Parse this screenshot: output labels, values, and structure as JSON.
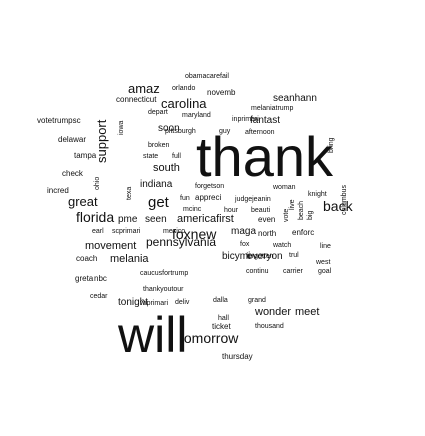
{
  "chart_data": {
    "type": "wordcloud",
    "title": "",
    "color": "#111111",
    "background": "#ffffff",
    "words": [
      {
        "text": "thank",
        "weight": 100,
        "vertical": false
      },
      {
        "text": "will",
        "weight": 92,
        "vertical": false
      },
      {
        "text": "tomorrow",
        "weight": 40,
        "vertical": false
      },
      {
        "text": "back",
        "weight": 34,
        "vertical": false
      },
      {
        "text": "florida",
        "weight": 34,
        "vertical": false
      },
      {
        "text": "get",
        "weight": 34,
        "vertical": false
      },
      {
        "text": "foxnew",
        "weight": 32,
        "vertical": false
      },
      {
        "text": "carolina",
        "weight": 32,
        "vertical": false
      },
      {
        "text": "support",
        "weight": 32,
        "vertical": true
      },
      {
        "text": "great",
        "weight": 30,
        "vertical": false
      },
      {
        "text": "amaz",
        "weight": 30,
        "vertical": false
      },
      {
        "text": "pennsylvania",
        "weight": 30,
        "vertical": false
      },
      {
        "text": "movement",
        "weight": 26,
        "vertical": false
      },
      {
        "text": "melania",
        "weight": 26,
        "vertical": false
      },
      {
        "text": "south",
        "weight": 26,
        "vertical": false
      },
      {
        "text": "wonder",
        "weight": 26,
        "vertical": false
      },
      {
        "text": "meet",
        "weight": 26,
        "vertical": false
      },
      {
        "text": "americafirst",
        "weight": 24,
        "vertical": false
      },
      {
        "text": "tonight",
        "weight": 24,
        "vertical": false
      },
      {
        "text": "seanhann",
        "weight": 24,
        "vertical": false
      },
      {
        "text": "fantast",
        "weight": 24,
        "vertical": false
      },
      {
        "text": "everyon",
        "weight": 24,
        "vertical": false
      },
      {
        "text": "soon",
        "weight": 24,
        "vertical": false
      },
      {
        "text": "indiana",
        "weight": 24,
        "vertical": false
      },
      {
        "text": "maga",
        "weight": 24,
        "vertical": false
      },
      {
        "text": "bicymi",
        "weight": 24,
        "vertical": false
      },
      {
        "text": "pme",
        "weight": 22,
        "vertical": false
      },
      {
        "text": "seen",
        "weight": 22,
        "vertical": false
      },
      {
        "text": "coach",
        "weight": 20,
        "vertical": false
      },
      {
        "text": "greta",
        "weight": 20,
        "vertical": false
      },
      {
        "text": "nbc",
        "weight": 20,
        "vertical": false
      },
      {
        "text": "check",
        "weight": 20,
        "vertical": false
      },
      {
        "text": "incred",
        "weight": 20,
        "vertical": false
      },
      {
        "text": "tampa",
        "weight": 20,
        "vertical": false
      },
      {
        "text": "delawar",
        "weight": 20,
        "vertical": false
      },
      {
        "text": "votetrumpsc",
        "weight": 18,
        "vertical": false
      },
      {
        "text": "connecticut",
        "weight": 18,
        "vertical": false
      },
      {
        "text": "orlando",
        "weight": 18,
        "vertical": false
      },
      {
        "text": "novemb",
        "weight": 20,
        "vertical": false
      },
      {
        "text": "obamacarefail",
        "weight": 16,
        "vertical": false
      },
      {
        "text": "depart",
        "weight": 18,
        "vertical": false
      },
      {
        "text": "maryland",
        "weight": 18,
        "vertical": false
      },
      {
        "text": "melaniatrump",
        "weight": 16,
        "vertical": false
      },
      {
        "text": "inprimari",
        "weight": 16,
        "vertical": false
      },
      {
        "text": "pittsburgh",
        "weight": 18,
        "vertical": false
      },
      {
        "text": "guy",
        "weight": 18,
        "vertical": false
      },
      {
        "text": "afternoon",
        "weight": 18,
        "vertical": false
      },
      {
        "text": "broken",
        "weight": 18,
        "vertical": false
      },
      {
        "text": "state",
        "weight": 18,
        "vertical": false
      },
      {
        "text": "full",
        "weight": 18,
        "vertical": false
      },
      {
        "text": "woman",
        "weight": 18,
        "vertical": false
      },
      {
        "text": "knight",
        "weight": 18,
        "vertical": false
      },
      {
        "text": "bring",
        "weight": 18,
        "vertical": true
      },
      {
        "text": "forgetson",
        "weight": 16,
        "vertical": false
      },
      {
        "text": "fun",
        "weight": 18,
        "vertical": false
      },
      {
        "text": "appreci",
        "weight": 18,
        "vertical": false
      },
      {
        "text": "judgejeanin",
        "weight": 18,
        "vertical": false
      },
      {
        "text": "mcinc",
        "weight": 16,
        "vertical": false
      },
      {
        "text": "hour",
        "weight": 16,
        "vertical": false
      },
      {
        "text": "beauti",
        "weight": 16,
        "vertical": false
      },
      {
        "text": "even",
        "weight": 18,
        "vertical": false
      },
      {
        "text": "earl",
        "weight": 16,
        "vertical": false
      },
      {
        "text": "scprimari",
        "weight": 16,
        "vertical": false
      },
      {
        "text": "mexico",
        "weight": 16,
        "vertical": false
      },
      {
        "text": "north",
        "weight": 18,
        "vertical": false
      },
      {
        "text": "enforc",
        "weight": 18,
        "vertical": false
      },
      {
        "text": "fox",
        "weight": 18,
        "vertical": false
      },
      {
        "text": "watch",
        "weight": 18,
        "vertical": false
      },
      {
        "text": "line",
        "weight": 16,
        "vertical": false
      },
      {
        "text": "forgotten",
        "weight": 18,
        "vertical": false
      },
      {
        "text": "trul",
        "weight": 16,
        "vertical": false
      },
      {
        "text": "west",
        "weight": 18,
        "vertical": false
      },
      {
        "text": "continu",
        "weight": 16,
        "vertical": false
      },
      {
        "text": "carrier",
        "weight": 16,
        "vertical": false
      },
      {
        "text": "goal",
        "weight": 16,
        "vertical": false
      },
      {
        "text": "caucusfortrump",
        "weight": 16,
        "vertical": false
      },
      {
        "text": "thankyoutour",
        "weight": 16,
        "vertical": false
      },
      {
        "text": "cedar",
        "weight": 16,
        "vertical": false
      },
      {
        "text": "wiprimari",
        "weight": 16,
        "vertical": false
      },
      {
        "text": "deliv",
        "weight": 16,
        "vertical": false
      },
      {
        "text": "dalla",
        "weight": 16,
        "vertical": false
      },
      {
        "text": "grand",
        "weight": 16,
        "vertical": false
      },
      {
        "text": "hall",
        "weight": 16,
        "vertical": false
      },
      {
        "text": "ticket",
        "weight": 18,
        "vertical": false
      },
      {
        "text": "thousand",
        "weight": 16,
        "vertical": false
      },
      {
        "text": "thursday",
        "weight": 18,
        "vertical": false
      },
      {
        "text": "columbus",
        "weight": 16,
        "vertical": true
      },
      {
        "text": "texa",
        "weight": 16,
        "vertical": true
      },
      {
        "text": "beach",
        "weight": 16,
        "vertical": true
      },
      {
        "text": "iowa",
        "weight": 16,
        "vertical": true
      },
      {
        "text": "ohio",
        "weight": 16,
        "vertical": true
      },
      {
        "text": "live",
        "weight": 16,
        "vertical": true
      },
      {
        "text": "vote",
        "weight": 16,
        "vertical": true
      },
      {
        "text": "big",
        "weight": 16,
        "vertical": true
      }
    ]
  }
}
